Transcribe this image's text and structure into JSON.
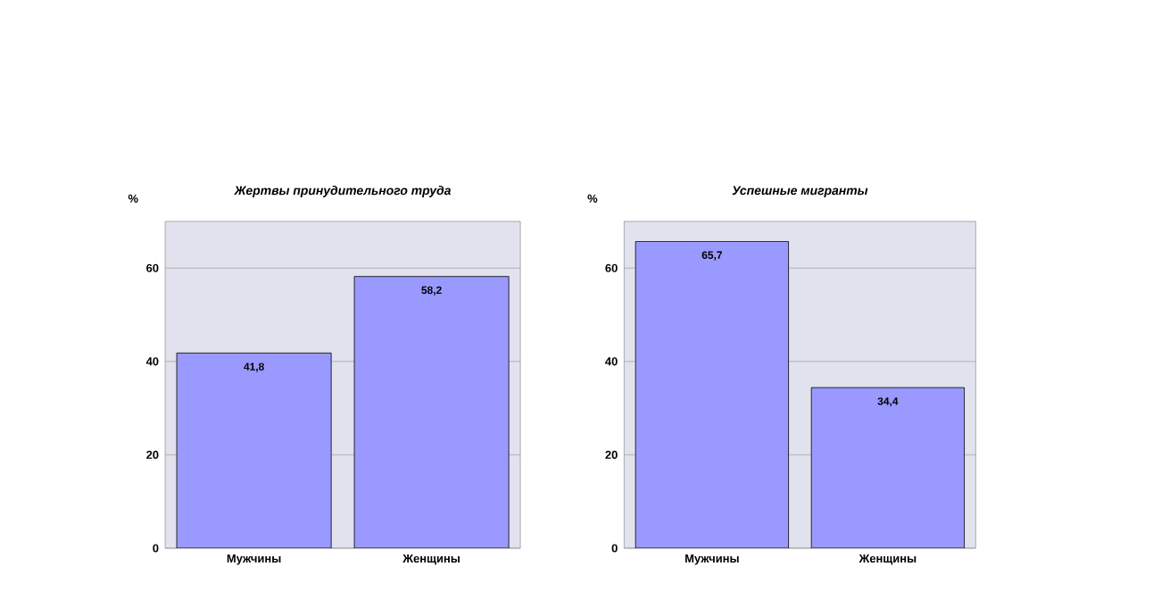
{
  "chart_data": [
    {
      "type": "bar",
      "title": "Жертвы принудительного труда",
      "ylabel": "%",
      "categories": [
        "Мужчины",
        "Женщины"
      ],
      "values": [
        41.8,
        58.2
      ],
      "value_labels": [
        "41,8",
        "58,2"
      ],
      "color": "#9999ff",
      "ylim": [
        0,
        70
      ],
      "yticks": [
        0,
        20,
        40,
        60
      ],
      "grid": "y"
    },
    {
      "type": "bar",
      "title": "Успешные мигранты",
      "ylabel": "%",
      "categories": [
        "Мужчины",
        "Женщины"
      ],
      "values": [
        65.7,
        34.4
      ],
      "value_labels": [
        "65,7",
        "34,4"
      ],
      "color": "#9999ff",
      "ylim": [
        0,
        70
      ],
      "yticks": [
        0,
        20,
        40,
        60
      ],
      "grid": "y"
    }
  ]
}
